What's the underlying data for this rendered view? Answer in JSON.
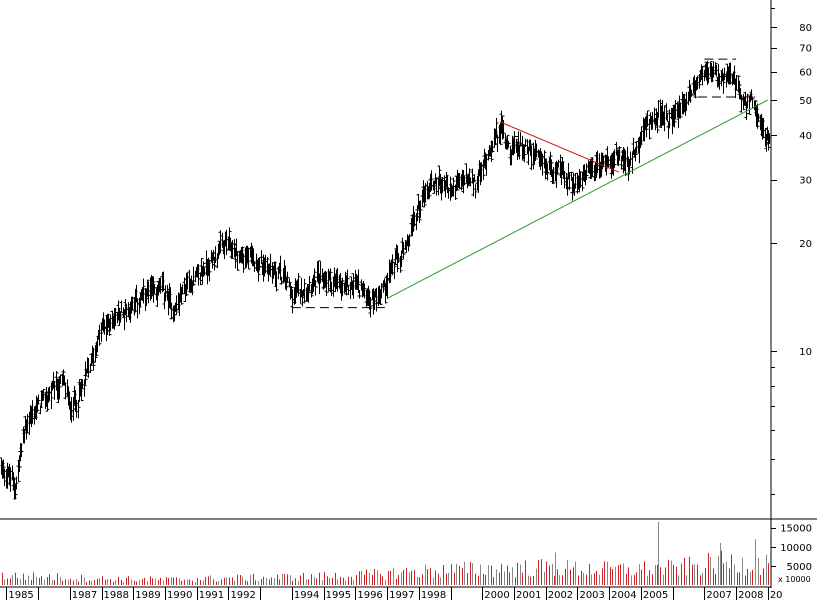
{
  "chart_data": {
    "type": "ohlc",
    "y_scale": "log",
    "price_ylim": [
      3.4,
      95
    ],
    "price_ticks": [
      {
        "value": 80,
        "label": "80"
      },
      {
        "value": 70,
        "label": "70"
      },
      {
        "value": 60,
        "label": "60"
      },
      {
        "value": 50,
        "label": "50"
      },
      {
        "value": 40,
        "label": "40"
      },
      {
        "value": 30,
        "label": "30"
      },
      {
        "value": 20,
        "label": "20"
      },
      {
        "value": 10,
        "label": "10"
      }
    ],
    "volume_ticks": [
      {
        "value": 15000,
        "label": "15000"
      },
      {
        "value": 10000,
        "label": "10000"
      },
      {
        "value": 5000,
        "label": "5000"
      }
    ],
    "volume_scale_label": "x 10000",
    "volume_ylim": [
      0,
      16500
    ],
    "x_range": [
      1984.8,
      2009.1
    ],
    "year_labels": [
      {
        "year": 1985,
        "label": "1985"
      },
      {
        "year": 1987,
        "label": "1987"
      },
      {
        "year": 1988,
        "label": "1988"
      },
      {
        "year": 1989,
        "label": "1989"
      },
      {
        "year": 1990,
        "label": "1990"
      },
      {
        "year": 1991,
        "label": "1991"
      },
      {
        "year": 1992,
        "label": "1992"
      },
      {
        "year": 1994,
        "label": "1994"
      },
      {
        "year": 1995,
        "label": "1995"
      },
      {
        "year": 1996,
        "label": "1996"
      },
      {
        "year": 1997,
        "label": "1997"
      },
      {
        "year": 1998,
        "label": "1998"
      },
      {
        "year": 2000,
        "label": "2000"
      },
      {
        "year": 2001,
        "label": "2001"
      },
      {
        "year": 2002,
        "label": "2002"
      },
      {
        "year": 2003,
        "label": "2003"
      },
      {
        "year": 2004,
        "label": "2004"
      },
      {
        "year": 2005,
        "label": "2005"
      },
      {
        "year": 2007,
        "label": "2007"
      },
      {
        "year": 2008,
        "label": "2008"
      },
      {
        "year": 2009,
        "label": "20"
      }
    ],
    "price_path": [
      [
        1984.8,
        4.8
      ],
      [
        1985.3,
        4.2
      ],
      [
        1985.6,
        6.2
      ],
      [
        1986.0,
        7.0
      ],
      [
        1986.5,
        7.8
      ],
      [
        1986.8,
        8.2
      ],
      [
        1987.0,
        7.0
      ],
      [
        1987.3,
        7.5
      ],
      [
        1987.7,
        9.5
      ],
      [
        1988.0,
        11.5
      ],
      [
        1988.5,
        12.5
      ],
      [
        1989.0,
        13.5
      ],
      [
        1989.5,
        14.5
      ],
      [
        1989.9,
        15.0
      ],
      [
        1990.3,
        13.0
      ],
      [
        1990.7,
        15.5
      ],
      [
        1991.0,
        16.0
      ],
      [
        1991.5,
        18.0
      ],
      [
        1991.9,
        20.0
      ],
      [
        1992.3,
        18.5
      ],
      [
        1992.7,
        18.0
      ],
      [
        1993.0,
        17.5
      ],
      [
        1993.4,
        16.8
      ],
      [
        1993.8,
        16.0
      ],
      [
        1994.0,
        14.5
      ],
      [
        1994.4,
        15.0
      ],
      [
        1994.8,
        16.0
      ],
      [
        1995.2,
        15.8
      ],
      [
        1995.6,
        15.0
      ],
      [
        1996.0,
        15.5
      ],
      [
        1996.5,
        13.8
      ],
      [
        1996.9,
        15.0
      ],
      [
        1997.2,
        17.5
      ],
      [
        1997.6,
        19.0
      ],
      [
        1997.9,
        24.0
      ],
      [
        1998.2,
        28.0
      ],
      [
        1998.6,
        30.0
      ],
      [
        1999.0,
        28.0
      ],
      [
        1999.4,
        30.0
      ],
      [
        1999.8,
        29.0
      ],
      [
        2000.0,
        32.0
      ],
      [
        2000.3,
        38.0
      ],
      [
        2000.6,
        42.0
      ],
      [
        2000.9,
        36.0
      ],
      [
        2001.2,
        38.0
      ],
      [
        2001.6,
        35.0
      ],
      [
        2002.0,
        33.0
      ],
      [
        2002.4,
        32.0
      ],
      [
        2002.7,
        30.0
      ],
      [
        2003.0,
        29.0
      ],
      [
        2003.3,
        31.0
      ],
      [
        2003.7,
        33.0
      ],
      [
        2004.0,
        34.0
      ],
      [
        2004.3,
        35.0
      ],
      [
        2004.6,
        33.0
      ],
      [
        2004.9,
        37.0
      ],
      [
        2005.2,
        44.0
      ],
      [
        2005.6,
        45.0
      ],
      [
        2005.9,
        44.0
      ],
      [
        2006.3,
        48.0
      ],
      [
        2006.7,
        55.0
      ],
      [
        2007.0,
        60.0
      ],
      [
        2007.3,
        59.0
      ],
      [
        2007.6,
        56.0
      ],
      [
        2007.9,
        58.0
      ],
      [
        2008.2,
        48.0
      ],
      [
        2008.5,
        50.0
      ],
      [
        2008.8,
        43.0
      ],
      [
        2009.0,
        38.0
      ]
    ],
    "volume_path": [
      [
        1984.8,
        3000
      ],
      [
        1986.5,
        2600
      ],
      [
        1988.0,
        2000
      ],
      [
        1990.0,
        1800
      ],
      [
        1992.0,
        2200
      ],
      [
        1994.0,
        2600
      ],
      [
        1996.0,
        3000
      ],
      [
        1997.0,
        3800
      ],
      [
        1998.0,
        4500
      ],
      [
        2000.0,
        5200
      ],
      [
        2002.0,
        5600
      ],
      [
        2004.0,
        5000
      ],
      [
        2006.0,
        5400
      ],
      [
        2007.5,
        7200
      ],
      [
        2009.0,
        7000
      ]
    ],
    "volume_spikes": [
      {
        "x": 2002.3,
        "v": 8500
      },
      {
        "x": 2005.55,
        "v": 16500
      },
      {
        "x": 2007.5,
        "v": 11000
      },
      {
        "x": 2008.6,
        "v": 12000
      }
    ],
    "trendlines": [
      {
        "name": "support-line",
        "color": "#2a9a2a",
        "dash": false,
        "points": [
          [
            1997.0,
            14.0
          ],
          [
            2009.0,
            50.0
          ]
        ]
      },
      {
        "name": "resistance-line",
        "color": "#cc1111",
        "dash": false,
        "points": [
          [
            2000.55,
            43.5
          ],
          [
            2004.3,
            31.5
          ]
        ]
      },
      {
        "name": "base-support-dashed",
        "color": "#000000",
        "dash": true,
        "points": [
          [
            1994.0,
            13.2
          ],
          [
            1997.0,
            13.2
          ]
        ]
      },
      {
        "name": "top-dashed-high",
        "color": "#000000",
        "dash": true,
        "points": [
          [
            2007.0,
            65.0
          ],
          [
            2008.0,
            65.0
          ]
        ]
      },
      {
        "name": "top-dashed-neckline",
        "color": "#000000",
        "dash": true,
        "points": [
          [
            2006.8,
            51.0
          ],
          [
            2008.6,
            51.0
          ]
        ]
      }
    ],
    "colors": {
      "bars": "#000000",
      "volume": "#cc2222",
      "volume_alt": "#888888",
      "grid_axis": "#000000"
    }
  }
}
